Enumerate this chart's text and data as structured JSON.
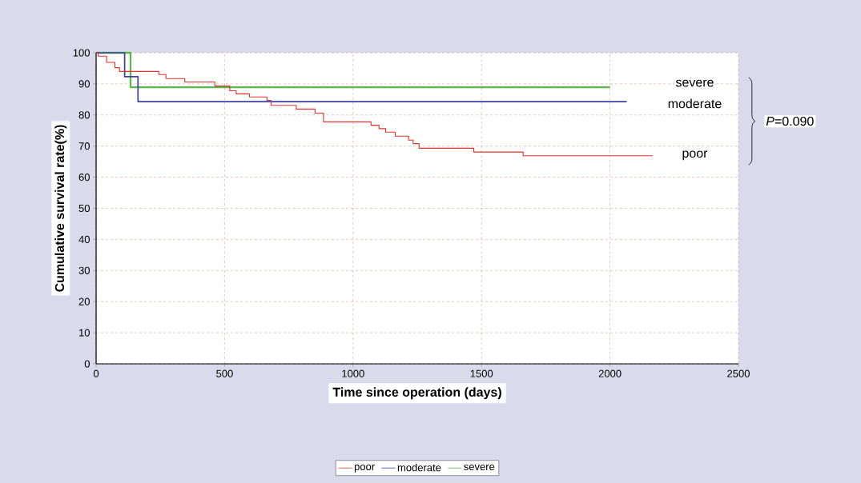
{
  "chart_data": {
    "type": "step",
    "xlabel": "Time since operation (days)",
    "ylabel": "Cumulative survival rate(%)",
    "xlim": [
      0,
      2500
    ],
    "xticks": [
      0,
      500,
      1000,
      1500,
      2000,
      2500
    ],
    "ylim": [
      0,
      100
    ],
    "yticks": [
      0,
      10,
      20,
      30,
      40,
      50,
      60,
      70,
      80,
      90,
      100
    ],
    "grid": true,
    "legend": "bottom",
    "marker": "none",
    "line_style": "solid",
    "series": [
      {
        "name": "poor",
        "color": "#e8302a",
        "x": [
          0,
          8,
          41,
          73,
          91,
          244,
          272,
          345,
          462,
          520,
          545,
          597,
          665,
          681,
          779,
          852,
          885,
          1070,
          1101,
          1127,
          1164,
          1216,
          1234,
          1257,
          1470,
          1662,
          2166
        ],
        "values": [
          100,
          98.9,
          96.9,
          95.2,
          94.0,
          93.0,
          91.7,
          90.6,
          89.3,
          87.8,
          86.8,
          85.8,
          84.7,
          83.1,
          81.9,
          80.6,
          77.8,
          76.7,
          75.6,
          74.5,
          73.2,
          71.9,
          70.8,
          69.3,
          68.1,
          66.9,
          66.9
        ]
      },
      {
        "name": "moderate",
        "color": "#3b3fa6",
        "x": [
          0,
          111,
          163,
          2065
        ],
        "values": [
          100,
          92.3,
          84.3,
          84.3
        ]
      },
      {
        "name": "severe",
        "color": "#5cb84a",
        "x": [
          0,
          134,
          2000
        ],
        "values": [
          100,
          88.9,
          88.9
        ]
      }
    ],
    "annotations": [
      "severe",
      "moderate",
      "poor",
      "*P*=0.090"
    ]
  }
}
